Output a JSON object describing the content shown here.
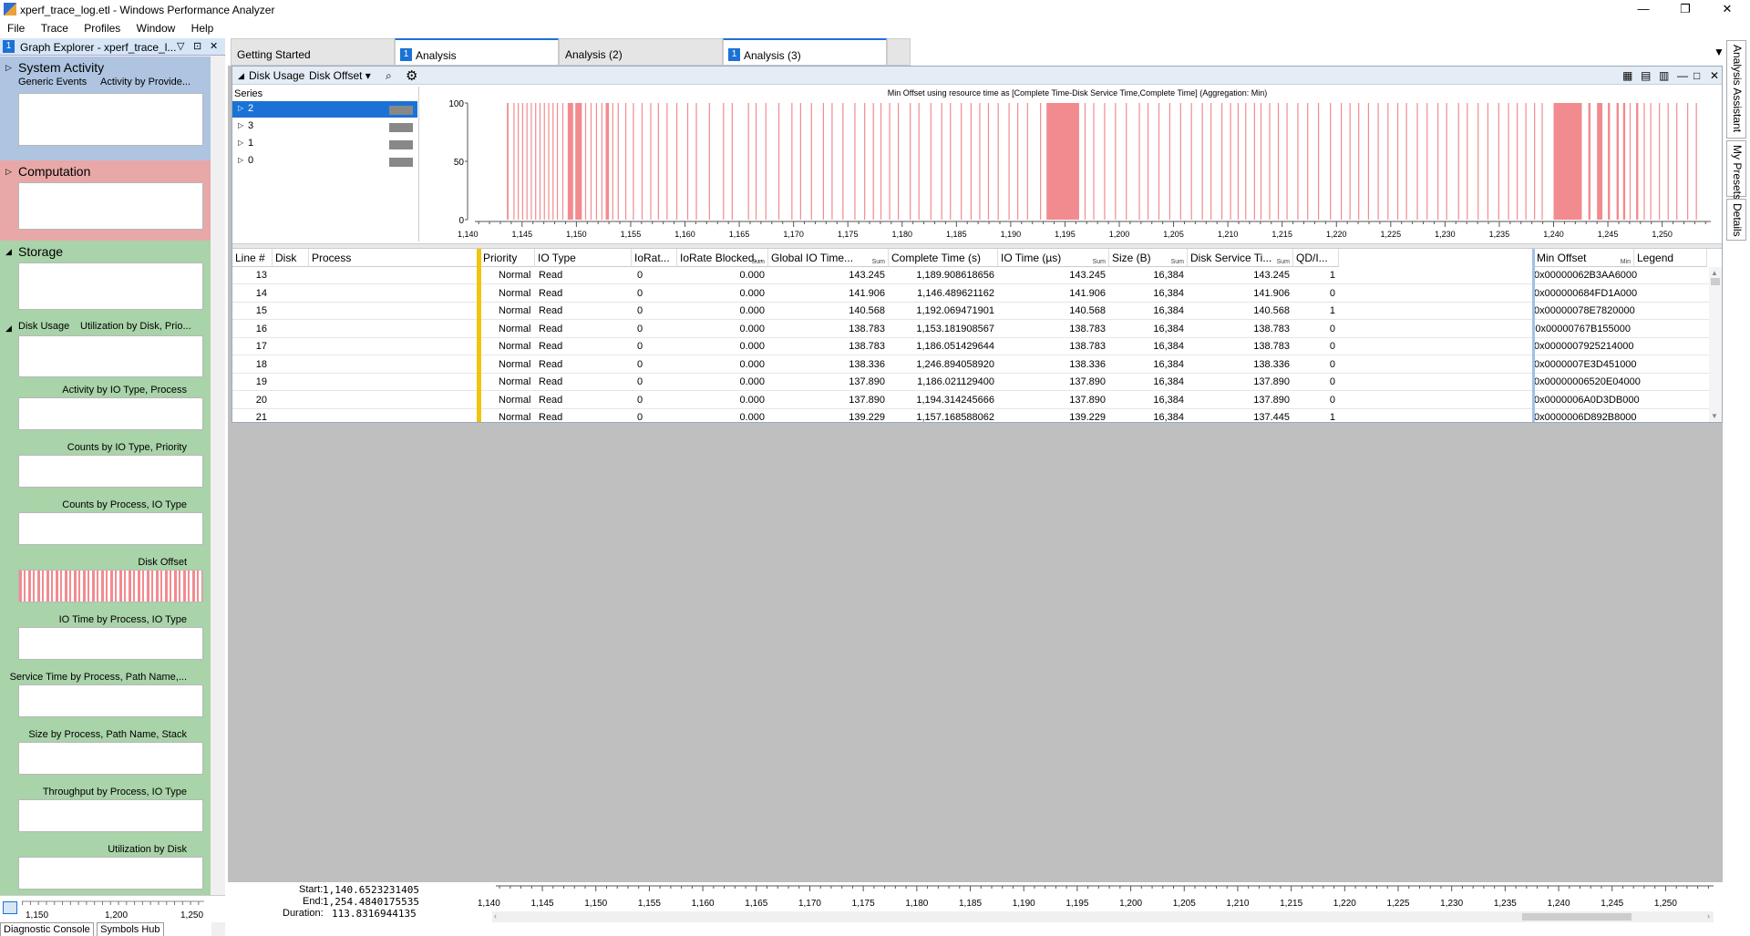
{
  "window": {
    "title": "xperf_trace_log.etl - Windows Performance Analyzer",
    "minimize": "—",
    "restore": "❐",
    "close": "✕"
  },
  "menu": [
    "File",
    "Trace",
    "Profiles",
    "Window",
    "Help"
  ],
  "graph_explorer": {
    "num": "1",
    "title": "Graph Explorer - xperf_trace_l...",
    "controls": [
      "▽",
      "⊡",
      "✕"
    ],
    "system_activity": {
      "title": "System Activity",
      "subtitle": "Generic Events",
      "subtitle2": "Activity by Provide..."
    },
    "computation": {
      "title": "Computation"
    },
    "storage": {
      "title": "Storage"
    },
    "disk_usage": {
      "title": "Disk Usage",
      "subtitle": "Utilization by Disk, Prio..."
    },
    "sub_items": [
      "Activity by IO Type, Process",
      "Counts by IO Type, Priority",
      "Counts by Process, IO Type",
      "Disk Offset",
      "IO Time by Process, IO Type",
      "Service Time by Process, Path Name,...",
      "Size by Process, Path Name, Stack",
      "Throughput by Process, IO Type",
      "Utilization by Disk"
    ],
    "axis_ticks": [
      "1,150",
      "1,200",
      "1,250"
    ],
    "bottom_tabs": [
      "Diagnostic Console",
      "Symbols Hub"
    ]
  },
  "tabs": [
    {
      "label": "Getting Started",
      "num": ""
    },
    {
      "label": "Analysis",
      "num": "1"
    },
    {
      "label": "Analysis (2)",
      "num": ""
    },
    {
      "label": "Analysis (3)",
      "num": "1"
    }
  ],
  "graph": {
    "category": "Disk Usage",
    "preset": "Disk Offset ▾",
    "series_header": "Series",
    "series": [
      {
        "name": "2",
        "selected": true
      },
      {
        "name": "3",
        "selected": false
      },
      {
        "name": "1",
        "selected": false
      },
      {
        "name": "0",
        "selected": false
      }
    ],
    "caption": "Min Offset using resource time as [Complete Time-Disk Service Time,Complete Time] (Aggregation: Min)",
    "bar_color": "#f28b8f"
  },
  "chart_data": {
    "type": "bar",
    "title": "Min Offset using resource time as [Complete Time-Disk Service Time,Complete Time] (Aggregation: Min)",
    "xlabel": "",
    "ylabel": "",
    "ylim": [
      0,
      100
    ],
    "yticks": [
      "100",
      "50",
      "0"
    ],
    "xlim": [
      1140.65,
      1254.48
    ],
    "xticks": [
      "1,140",
      "1,145",
      "1,150",
      "1,155",
      "1,160",
      "1,165",
      "1,170",
      "1,175",
      "1,180",
      "1,185",
      "1,190",
      "1,195",
      "1,200",
      "1,205",
      "1,210",
      "1,215",
      "1,220",
      "1,225",
      "1,230",
      "1,235",
      "1,240",
      "1,245",
      "1,250"
    ],
    "xtick_values": [
      1140,
      1145,
      1150,
      1155,
      1160,
      1165,
      1170,
      1175,
      1180,
      1185,
      1190,
      1195,
      1200,
      1205,
      1210,
      1215,
      1220,
      1225,
      1230,
      1235,
      1240,
      1245,
      1250
    ],
    "intervals": [
      [
        1143.6,
        1143.75
      ],
      [
        1144.2,
        1144.3
      ],
      [
        1144.6,
        1144.7
      ],
      [
        1145.0,
        1145.1
      ],
      [
        1145.4,
        1145.5
      ],
      [
        1145.8,
        1145.9
      ],
      [
        1146.2,
        1146.3
      ],
      [
        1146.6,
        1146.7
      ],
      [
        1147.0,
        1147.1
      ],
      [
        1147.4,
        1147.5
      ],
      [
        1147.8,
        1147.9
      ],
      [
        1148.2,
        1148.3
      ],
      [
        1148.7,
        1148.8
      ],
      [
        1149.2,
        1149.7
      ],
      [
        1149.9,
        1150.5
      ],
      [
        1150.8,
        1150.9
      ],
      [
        1151.3,
        1151.4
      ],
      [
        1151.8,
        1151.9
      ],
      [
        1152.3,
        1152.4
      ],
      [
        1152.7,
        1153.0
      ],
      [
        1153.3,
        1153.4
      ],
      [
        1153.8,
        1153.9
      ],
      [
        1154.5,
        1154.6
      ],
      [
        1155.2,
        1155.3
      ],
      [
        1156.0,
        1156.1
      ],
      [
        1156.8,
        1156.9
      ],
      [
        1157.5,
        1157.6
      ],
      [
        1158.3,
        1158.4
      ],
      [
        1159.2,
        1159.3
      ],
      [
        1160.2,
        1160.3
      ],
      [
        1161.0,
        1161.1
      ],
      [
        1162.2,
        1162.3
      ],
      [
        1163.5,
        1163.6
      ],
      [
        1164.3,
        1164.4
      ],
      [
        1165.8,
        1165.9
      ],
      [
        1166.5,
        1166.6
      ],
      [
        1167.4,
        1167.5
      ],
      [
        1168.6,
        1168.7
      ],
      [
        1169.8,
        1169.9
      ],
      [
        1170.6,
        1170.7
      ],
      [
        1171.6,
        1171.7
      ],
      [
        1172.7,
        1172.8
      ],
      [
        1173.5,
        1173.6
      ],
      [
        1174.5,
        1174.6
      ],
      [
        1175.6,
        1175.7
      ],
      [
        1176.5,
        1176.6
      ],
      [
        1177.3,
        1177.4
      ],
      [
        1178.0,
        1178.1
      ],
      [
        1178.8,
        1178.9
      ],
      [
        1179.6,
        1179.7
      ],
      [
        1180.7,
        1180.8
      ],
      [
        1181.5,
        1181.6
      ],
      [
        1182.6,
        1182.7
      ],
      [
        1183.6,
        1183.7
      ],
      [
        1184.4,
        1184.5
      ],
      [
        1185.4,
        1185.5
      ],
      [
        1186.3,
        1186.4
      ],
      [
        1187.1,
        1187.2
      ],
      [
        1187.9,
        1188.0
      ],
      [
        1188.8,
        1188.9
      ],
      [
        1189.8,
        1189.9
      ],
      [
        1190.6,
        1190.7
      ],
      [
        1191.5,
        1191.6
      ],
      [
        1192.7,
        1192.8
      ],
      [
        1193.3,
        1196.3
      ],
      [
        1196.8,
        1196.9
      ],
      [
        1197.6,
        1197.7
      ],
      [
        1198.6,
        1198.7
      ],
      [
        1199.6,
        1199.7
      ],
      [
        1200.6,
        1200.7
      ],
      [
        1201.8,
        1201.9
      ],
      [
        1202.6,
        1202.7
      ],
      [
        1203.6,
        1203.7
      ],
      [
        1204.6,
        1204.7
      ],
      [
        1205.6,
        1205.7
      ],
      [
        1206.6,
        1206.7
      ],
      [
        1207.6,
        1207.7
      ],
      [
        1208.4,
        1208.5
      ],
      [
        1209.4,
        1209.5
      ],
      [
        1210.2,
        1210.3
      ],
      [
        1210.9,
        1211.0
      ],
      [
        1211.6,
        1211.7
      ],
      [
        1212.4,
        1212.5
      ],
      [
        1213.0,
        1213.1
      ],
      [
        1213.8,
        1213.9
      ],
      [
        1214.6,
        1214.7
      ],
      [
        1215.4,
        1215.5
      ],
      [
        1216.4,
        1216.5
      ],
      [
        1217.3,
        1217.4
      ],
      [
        1218.3,
        1218.4
      ],
      [
        1219.4,
        1219.5
      ],
      [
        1220.4,
        1220.5
      ],
      [
        1221.2,
        1221.3
      ],
      [
        1222.0,
        1222.1
      ],
      [
        1222.9,
        1223.0
      ],
      [
        1223.8,
        1223.9
      ],
      [
        1224.7,
        1224.8
      ],
      [
        1225.6,
        1225.7
      ],
      [
        1226.4,
        1226.5
      ],
      [
        1227.4,
        1227.5
      ],
      [
        1228.3,
        1228.4
      ],
      [
        1229.3,
        1229.4
      ],
      [
        1230.1,
        1230.2
      ],
      [
        1231.2,
        1231.3
      ],
      [
        1232.0,
        1232.1
      ],
      [
        1233.0,
        1233.1
      ],
      [
        1233.9,
        1234.0
      ],
      [
        1234.9,
        1235.0
      ],
      [
        1235.8,
        1235.9
      ],
      [
        1236.6,
        1236.7
      ],
      [
        1237.4,
        1237.5
      ],
      [
        1238.2,
        1238.3
      ],
      [
        1238.9,
        1239.0
      ],
      [
        1240.0,
        1242.6
      ],
      [
        1243.2,
        1243.4
      ],
      [
        1244.0,
        1244.5
      ],
      [
        1245.0,
        1245.2
      ],
      [
        1245.8,
        1246.0
      ],
      [
        1246.4,
        1246.6
      ],
      [
        1247.0,
        1247.1
      ],
      [
        1247.6,
        1247.8
      ],
      [
        1248.3,
        1248.4
      ],
      [
        1248.9,
        1249.0
      ],
      [
        1249.7,
        1249.8
      ],
      [
        1250.5,
        1250.6
      ],
      [
        1251.3,
        1251.4
      ],
      [
        1252.3,
        1252.4
      ],
      [
        1253.1,
        1253.2
      ]
    ],
    "value": 100,
    "color": "#f28b8f"
  },
  "table": {
    "columns": [
      {
        "label": "Line #",
        "agg": ""
      },
      {
        "label": "Disk",
        "agg": ""
      },
      {
        "label": "Process",
        "agg": ""
      },
      {
        "label": "Priority",
        "agg": ""
      },
      {
        "label": "IO Type",
        "agg": ""
      },
      {
        "label": "IoRat...",
        "agg": ""
      },
      {
        "label": "IoRate Blocked...",
        "agg": "Sum"
      },
      {
        "label": "Global IO Time...",
        "agg": "Sum"
      },
      {
        "label": "Complete Time (s)",
        "agg": ""
      },
      {
        "label": "IO Time (µs)",
        "agg": "Sum"
      },
      {
        "label": "Size (B)",
        "agg": "Sum"
      },
      {
        "label": "Disk Service Ti...",
        "agg": "Sum"
      },
      {
        "label": "QD/I...",
        "agg": ""
      },
      {
        "label": "Min Offset",
        "agg": "Min"
      },
      {
        "label": "Legend",
        "agg": ""
      }
    ],
    "rows": [
      [
        "13",
        "",
        "",
        "Normal",
        "Read",
        "0",
        "0.000",
        "143.245",
        "1,189.908618656",
        "143.245",
        "16,384",
        "143.245",
        "1",
        "0x00000062B3AA6000"
      ],
      [
        "14",
        "",
        "",
        "Normal",
        "Read",
        "0",
        "0.000",
        "141.906",
        "1,146.489621162",
        "141.906",
        "16,384",
        "141.906",
        "0",
        "0x000000684FD1A000"
      ],
      [
        "15",
        "",
        "",
        "Normal",
        "Read",
        "0",
        "0.000",
        "140.568",
        "1,192.069471901",
        "140.568",
        "16,384",
        "140.568",
        "1",
        "0x00000078E7820000"
      ],
      [
        "16",
        "",
        "",
        "Normal",
        "Read",
        "0",
        "0.000",
        "138.783",
        "1,153.181908567",
        "138.783",
        "16,384",
        "138.783",
        "0",
        "0x00000767B155000"
      ],
      [
        "17",
        "",
        "",
        "Normal",
        "Read",
        "0",
        "0.000",
        "138.783",
        "1,186.051429644",
        "138.783",
        "16,384",
        "138.783",
        "0",
        "0x0000007925214000"
      ],
      [
        "18",
        "",
        "",
        "Normal",
        "Read",
        "0",
        "0.000",
        "138.336",
        "1,246.894058920",
        "138.336",
        "16,384",
        "138.336",
        "0",
        "0x0000007E3D451000"
      ],
      [
        "19",
        "",
        "",
        "Normal",
        "Read",
        "0",
        "0.000",
        "137.890",
        "1,186.021129400",
        "137.890",
        "16,384",
        "137.890",
        "0",
        "0x00000006520E04000"
      ],
      [
        "20",
        "",
        "",
        "Normal",
        "Read",
        "0",
        "0.000",
        "137.890",
        "1,194.314245666",
        "137.890",
        "16,384",
        "137.890",
        "0",
        "0x0000006A0D3DB000"
      ],
      [
        "21",
        "",
        "",
        "Normal",
        "Read",
        "0",
        "0.000",
        "139.229",
        "1,157.168588062",
        "139.229",
        "16,384",
        "137.445",
        "1",
        "0x0000006D892B8000"
      ]
    ]
  },
  "timeline": {
    "start_label": "Start:",
    "start": "1,140.6523231405",
    "end_label": "End:",
    "end": "1,254.4840175535",
    "duration_label": "Duration:",
    "duration": "113.8316944135"
  },
  "right_tabs": [
    "Analysis Assistant",
    "My Presets",
    "Details"
  ]
}
